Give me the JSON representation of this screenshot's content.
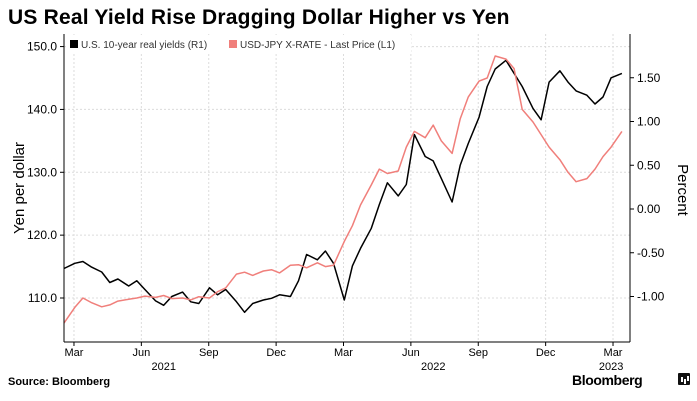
{
  "title": "US Real Yield Rise Dragging Dollar Higher vs Yen",
  "source": "Source: Bloomberg",
  "brand": "Bloomberg",
  "colors": {
    "us_real_yield": "#000000",
    "usdjpy": "#f07f7b",
    "grid": "#dcdcdc"
  },
  "chart_data": {
    "type": "line",
    "title": "US Real Yield Rise Dragging Dollar Higher vs Yen",
    "xlabel": "",
    "left_axis": {
      "label": "Yen per dollar",
      "ylim": [
        103,
        152
      ],
      "ticks": [
        110,
        120,
        130,
        140,
        150
      ],
      "tick_labels": [
        "110.0",
        "120.0",
        "130.0",
        "140.0",
        "150.0"
      ]
    },
    "right_axis": {
      "label": "Percent",
      "ylim": [
        -1.52,
        2.0
      ],
      "ticks": [
        -1.0,
        -0.5,
        0.0,
        0.5,
        1.0,
        1.5
      ],
      "tick_labels": [
        "-1.00",
        "-0.50",
        "0.00",
        "0.50",
        "1.00",
        "1.50"
      ]
    },
    "x_range": [
      2021.13,
      2023.23
    ],
    "x_ticks": [
      {
        "label": "Mar",
        "x": 2021.167
      },
      {
        "label": "Jun",
        "x": 2021.417
      },
      {
        "label": "Sep",
        "x": 2021.667
      },
      {
        "label": "Dec",
        "x": 2021.917
      },
      {
        "label": "Mar",
        "x": 2022.167
      },
      {
        "label": "Jun",
        "x": 2022.417
      },
      {
        "label": "Sep",
        "x": 2022.667
      },
      {
        "label": "Dec",
        "x": 2022.917
      },
      {
        "label": "Mar",
        "x": 2023.167
      }
    ],
    "year_labels": [
      {
        "label": "2021",
        "x": 2021.5
      },
      {
        "label": "2022",
        "x": 2022.5
      },
      {
        "label": "2023",
        "x": 2023.16
      }
    ],
    "legend": "top-left",
    "series": [
      {
        "name": "U.S. 10-year real yields (R1)",
        "axis": "right",
        "x": [
          2021.13,
          2021.17,
          2021.2,
          2021.23,
          2021.27,
          2021.3,
          2021.33,
          2021.37,
          2021.4,
          2021.43,
          2021.47,
          2021.5,
          2021.53,
          2021.57,
          2021.6,
          2021.63,
          2021.67,
          2021.7,
          2021.73,
          2021.77,
          2021.8,
          2021.83,
          2021.87,
          2021.9,
          2021.93,
          2021.97,
          2022.0,
          2022.03,
          2022.07,
          2022.1,
          2022.13,
          2022.17,
          2022.2,
          2022.23,
          2022.27,
          2022.3,
          2022.33,
          2022.37,
          2022.4,
          2022.43,
          2022.47,
          2022.5,
          2022.53,
          2022.57,
          2022.6,
          2022.63,
          2022.67,
          2022.7,
          2022.73,
          2022.77,
          2022.8,
          2022.83,
          2022.87,
          2022.9,
          2022.93,
          2022.97,
          2023.0,
          2023.03,
          2023.07,
          2023.1,
          2023.13,
          2023.16,
          2023.2
        ],
        "values": [
          -0.68,
          -0.62,
          -0.6,
          -0.66,
          -0.72,
          -0.84,
          -0.8,
          -0.88,
          -0.82,
          -0.92,
          -1.05,
          -1.1,
          -1.0,
          -0.95,
          -1.06,
          -1.08,
          -0.9,
          -0.98,
          -0.92,
          -1.06,
          -1.18,
          -1.08,
          -1.04,
          -1.02,
          -0.98,
          -1.0,
          -0.82,
          -0.52,
          -0.58,
          -0.48,
          -0.62,
          -1.04,
          -0.65,
          -0.45,
          -0.22,
          0.05,
          0.3,
          0.15,
          0.28,
          0.85,
          0.6,
          0.55,
          0.35,
          0.08,
          0.5,
          0.75,
          1.05,
          1.4,
          1.6,
          1.7,
          1.55,
          1.4,
          1.15,
          1.02,
          1.45,
          1.58,
          1.45,
          1.35,
          1.3,
          1.2,
          1.28,
          1.5,
          1.55
        ]
      },
      {
        "name": "USD-JPY X-RATE - Last Price (L1)",
        "axis": "left",
        "x": [
          2021.13,
          2021.17,
          2021.2,
          2021.23,
          2021.27,
          2021.3,
          2021.33,
          2021.37,
          2021.4,
          2021.43,
          2021.47,
          2021.5,
          2021.53,
          2021.57,
          2021.6,
          2021.63,
          2021.67,
          2021.7,
          2021.73,
          2021.77,
          2021.8,
          2021.83,
          2021.87,
          2021.9,
          2021.93,
          2021.97,
          2022.0,
          2022.03,
          2022.07,
          2022.1,
          2022.13,
          2022.17,
          2022.2,
          2022.23,
          2022.27,
          2022.3,
          2022.33,
          2022.37,
          2022.4,
          2022.43,
          2022.47,
          2022.5,
          2022.53,
          2022.57,
          2022.6,
          2022.63,
          2022.67,
          2022.7,
          2022.73,
          2022.77,
          2022.8,
          2022.83,
          2022.87,
          2022.9,
          2022.93,
          2022.97,
          2023.0,
          2023.03,
          2023.07,
          2023.1,
          2023.13,
          2023.16,
          2023.2
        ],
        "values": [
          106.0,
          108.5,
          110.0,
          109.3,
          108.6,
          108.9,
          109.5,
          109.8,
          110.0,
          110.3,
          110.1,
          110.4,
          109.9,
          110.0,
          109.7,
          110.2,
          110.0,
          111.0,
          111.6,
          113.8,
          114.1,
          113.6,
          114.3,
          114.5,
          114.0,
          115.2,
          115.3,
          114.8,
          115.6,
          115.0,
          115.2,
          119.0,
          121.5,
          124.8,
          128.0,
          130.5,
          129.8,
          130.2,
          134.0,
          136.5,
          135.5,
          137.5,
          135.0,
          133.0,
          138.5,
          142.0,
          144.5,
          145.0,
          148.5,
          148.0,
          146.5,
          140.0,
          138.0,
          136.0,
          134.0,
          132.0,
          130.0,
          128.5,
          129.0,
          130.5,
          132.5,
          134.0,
          136.5
        ]
      }
    ]
  }
}
